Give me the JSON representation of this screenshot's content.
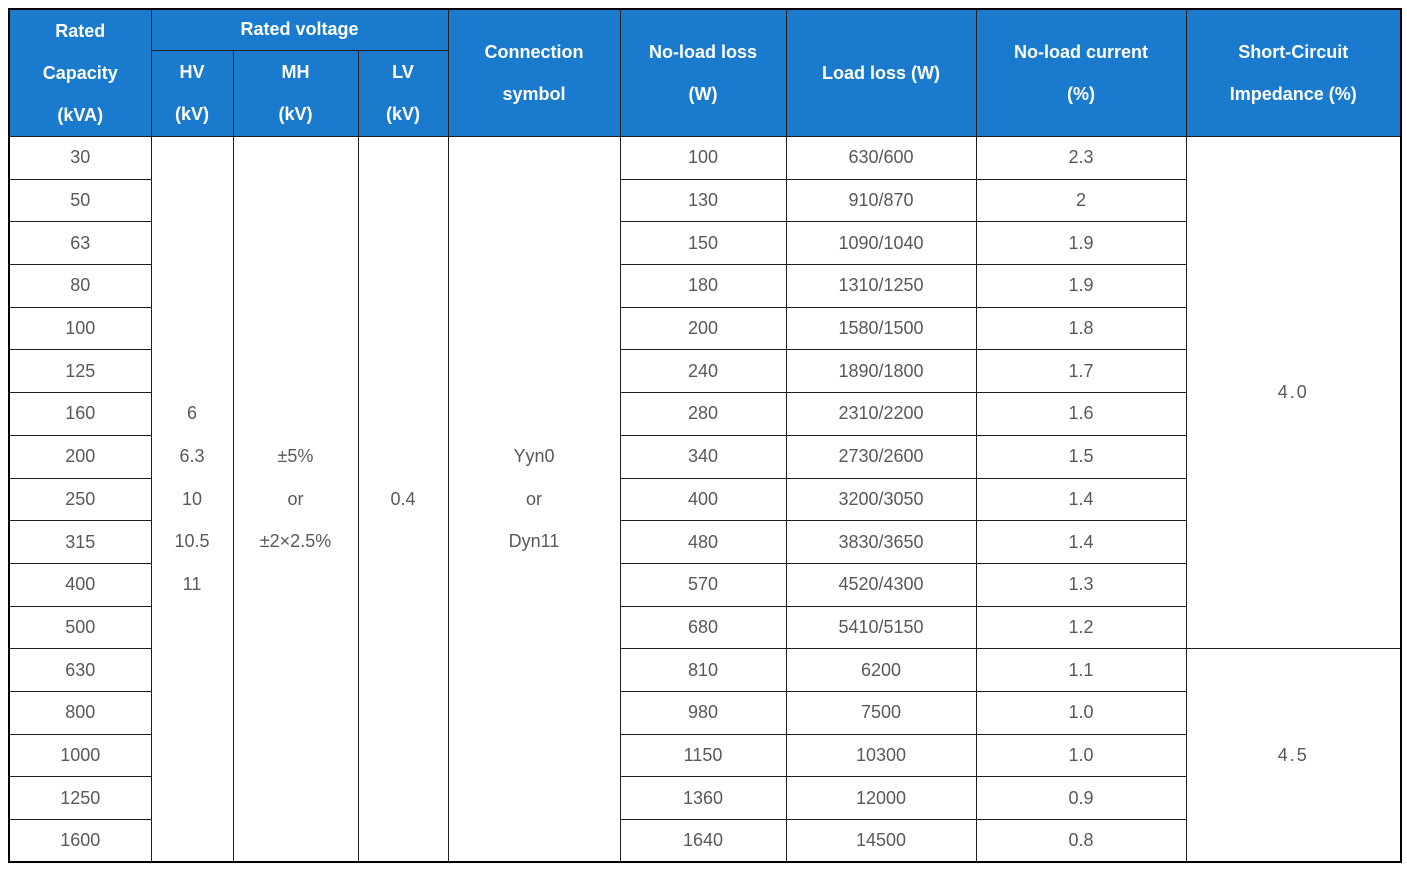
{
  "table": {
    "header": {
      "rated_capacity_lines": [
        "Rated",
        "Capacity",
        "(kVA)"
      ],
      "rated_voltage": "Rated voltage",
      "hv_lines": [
        "HV",
        "(kV)"
      ],
      "mh_lines": [
        "MH",
        "(kV)"
      ],
      "lv_lines": [
        "LV",
        "(kV)"
      ],
      "connection_lines": [
        "Connection",
        "symbol"
      ],
      "no_load_loss_lines": [
        "No-load loss",
        "(W)"
      ],
      "load_loss": "Load loss (W)",
      "no_load_current_lines": [
        "No-load current",
        "(%)"
      ],
      "impedance_lines": [
        "Short-Circuit",
        "Impedance (%)"
      ]
    },
    "merged": {
      "hv_values": [
        "6",
        "6.3",
        "10",
        "10.5",
        "11"
      ],
      "mh_values": [
        "±5%",
        "or",
        "±2×2.5%"
      ],
      "lv_value": "0.4",
      "connection_values": [
        "Yyn0",
        "or",
        "Dyn11"
      ],
      "impedance_groups": [
        {
          "value": "4.0",
          "row_span": 12
        },
        {
          "value": "4.5",
          "row_span": 5
        }
      ]
    },
    "rows": [
      {
        "capacity": "30",
        "no_load_loss": "100",
        "load_loss": "630/600",
        "no_load_current": "2.3"
      },
      {
        "capacity": "50",
        "no_load_loss": "130",
        "load_loss": "910/870",
        "no_load_current": "2"
      },
      {
        "capacity": "63",
        "no_load_loss": "150",
        "load_loss": "1090/1040",
        "no_load_current": "1.9"
      },
      {
        "capacity": "80",
        "no_load_loss": "180",
        "load_loss": "1310/1250",
        "no_load_current": "1.9"
      },
      {
        "capacity": "100",
        "no_load_loss": "200",
        "load_loss": "1580/1500",
        "no_load_current": "1.8"
      },
      {
        "capacity": "125",
        "no_load_loss": "240",
        "load_loss": "1890/1800",
        "no_load_current": "1.7"
      },
      {
        "capacity": "160",
        "no_load_loss": "280",
        "load_loss": "2310/2200",
        "no_load_current": "1.6"
      },
      {
        "capacity": "200",
        "no_load_loss": "340",
        "load_loss": "2730/2600",
        "no_load_current": "1.5"
      },
      {
        "capacity": "250",
        "no_load_loss": "400",
        "load_loss": "3200/3050",
        "no_load_current": "1.4"
      },
      {
        "capacity": "315",
        "no_load_loss": "480",
        "load_loss": "3830/3650",
        "no_load_current": "1.4"
      },
      {
        "capacity": "400",
        "no_load_loss": "570",
        "load_loss": "4520/4300",
        "no_load_current": "1.3"
      },
      {
        "capacity": "500",
        "no_load_loss": "680",
        "load_loss": "5410/5150",
        "no_load_current": "1.2"
      },
      {
        "capacity": "630",
        "no_load_loss": "810",
        "load_loss": "6200",
        "no_load_current": "1.1"
      },
      {
        "capacity": "800",
        "no_load_loss": "980",
        "load_loss": "7500",
        "no_load_current": "1.0"
      },
      {
        "capacity": "1000",
        "no_load_loss": "1150",
        "load_loss": "10300",
        "no_load_current": "1.0"
      },
      {
        "capacity": "1250",
        "no_load_loss": "1360",
        "load_loss": "12000",
        "no_load_current": "0.9"
      },
      {
        "capacity": "1600",
        "no_load_loss": "1640",
        "load_loss": "14500",
        "no_load_current": "0.8"
      }
    ],
    "colors": {
      "header_bg": "#1a7bce",
      "header_text": "#ffffff",
      "body_text": "#595959",
      "border": "#1f1f1f",
      "outer_border": "#000000"
    }
  }
}
